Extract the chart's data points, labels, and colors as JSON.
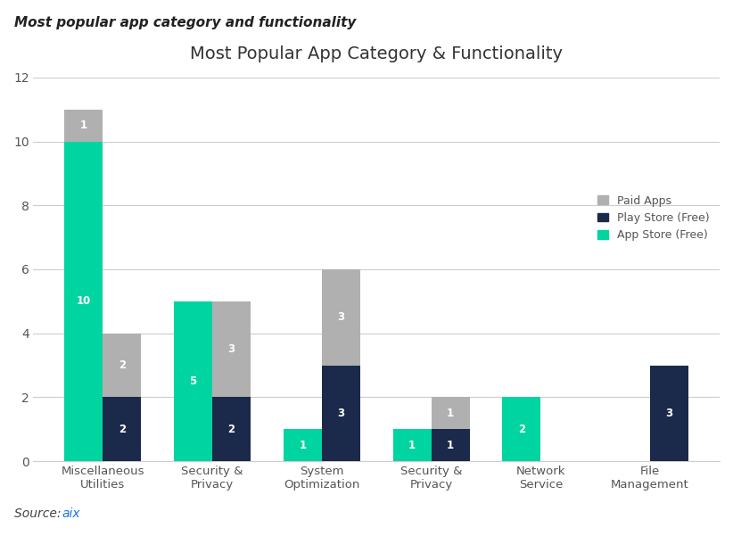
{
  "title": "Most Popular App Category & Functionality",
  "outer_title": "Most popular app category and functionality",
  "categories": [
    "Miscellaneous\nUtilities",
    "Security &\nPrivacy",
    "System\nOptimization",
    "Security &\nPrivacy",
    "Network\nService",
    "File\nManagement"
  ],
  "app_store_free": [
    10,
    5,
    1,
    1,
    2,
    0
  ],
  "play_store_free": [
    2,
    2,
    3,
    1,
    0,
    3
  ],
  "paid_apps_on_app_store": [
    1,
    0,
    0,
    0,
    0,
    0
  ],
  "paid_apps_on_play_store": [
    2,
    3,
    3,
    1,
    0,
    0
  ],
  "color_app_store": "#00D4A0",
  "color_play_store": "#1B2A4A",
  "color_paid": "#B0B0B0",
  "ylim": [
    0,
    12
  ],
  "yticks": [
    0,
    2,
    4,
    6,
    8,
    10,
    12
  ],
  "bar_width": 0.35,
  "source_text": "Source: ",
  "source_link": "aix",
  "source_url": "#",
  "legend_paid": "Paid Apps",
  "legend_play": "Play Store (Free)",
  "legend_app": "App Store (Free)",
  "label_fontsize": 8.5,
  "title_fontsize": 14,
  "background_color": "#FFFFFF"
}
